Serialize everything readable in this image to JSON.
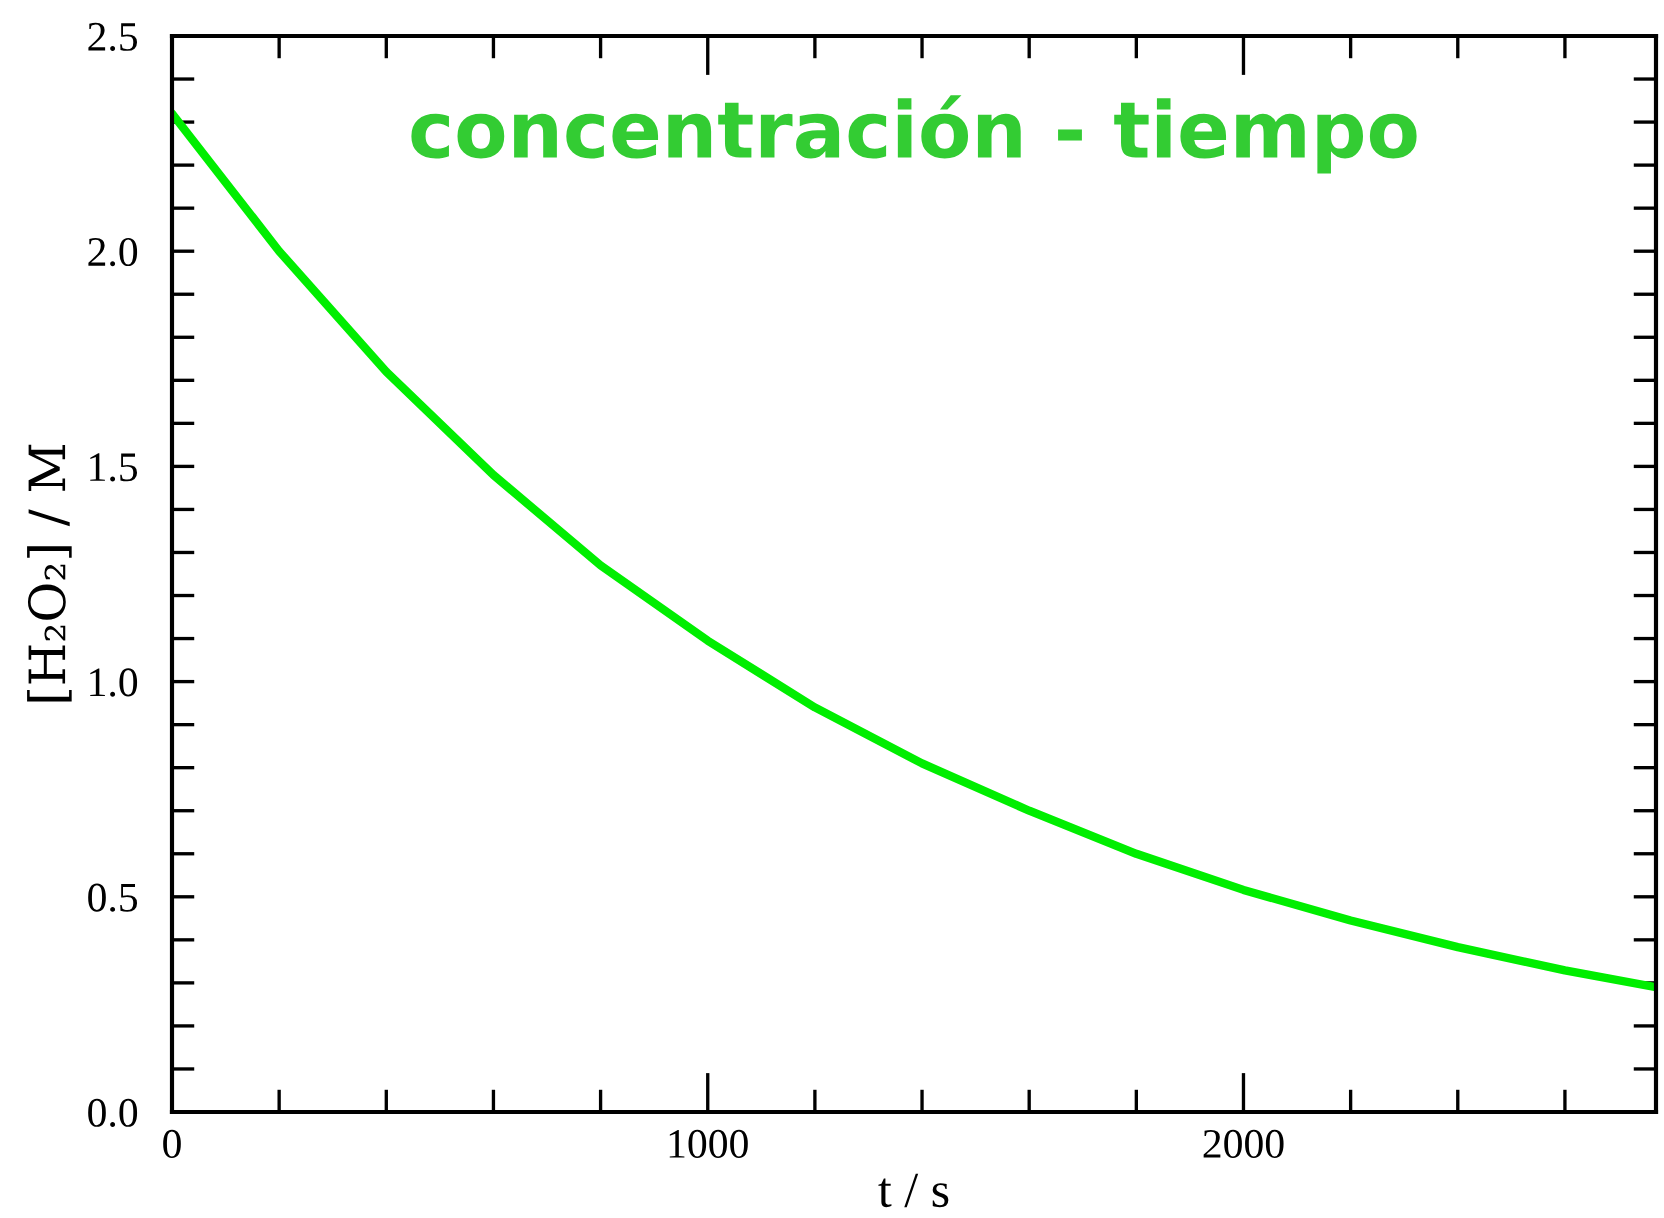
{
  "chart_data": {
    "type": "line",
    "title": "concentración - tiempo",
    "xlabel": "t / s",
    "ylabel": "[H₂O₂] / M",
    "x": [
      0,
      200,
      400,
      600,
      800,
      1000,
      1200,
      1400,
      1600,
      1800,
      2000,
      2200,
      2400,
      2600,
      2770
    ],
    "series": [
      {
        "color": "#00ee00",
        "values": [
          2.32,
          2.0,
          1.72,
          1.48,
          1.27,
          1.095,
          0.94,
          0.81,
          0.7,
          0.6,
          0.516,
          0.445,
          0.383,
          0.329,
          0.29
        ]
      }
    ],
    "xlim": [
      0,
      2770
    ],
    "ylim": [
      0,
      2.5
    ],
    "xticks": [
      0,
      {
        "value": 200,
        "label": null
      },
      {
        "value": 400,
        "label": null
      },
      {
        "value": 600,
        "label": null
      },
      {
        "value": 800,
        "label": null
      },
      1000,
      {
        "value": 1200,
        "label": null
      },
      {
        "value": 1400,
        "label": null
      },
      {
        "value": 1600,
        "label": null
      },
      {
        "value": 1800,
        "label": null
      },
      2000,
      {
        "value": 2200,
        "label": null
      },
      {
        "value": 2400,
        "label": null
      },
      {
        "value": 2600,
        "label": null
      }
    ],
    "yticks": [
      {
        "value": 0,
        "label": "0.0"
      },
      {
        "value": 0.1,
        "label": null
      },
      {
        "value": 0.2,
        "label": null
      },
      {
        "value": 0.3,
        "label": null
      },
      {
        "value": 0.4,
        "label": null
      },
      {
        "value": 0.5,
        "label": "0.5"
      },
      {
        "value": 0.6,
        "label": null
      },
      {
        "value": 0.7,
        "label": null
      },
      {
        "value": 0.8,
        "label": null
      },
      {
        "value": 0.9,
        "label": null
      },
      {
        "value": 1.0,
        "label": "1.0"
      },
      {
        "value": 1.1,
        "label": null
      },
      {
        "value": 1.2,
        "label": null
      },
      {
        "value": 1.3,
        "label": null
      },
      {
        "value": 1.4,
        "label": null
      },
      {
        "value": 1.5,
        "label": "1.5"
      },
      {
        "value": 1.6,
        "label": null
      },
      {
        "value": 1.7,
        "label": null
      },
      {
        "value": 1.8,
        "label": null
      },
      {
        "value": 1.9,
        "label": null
      },
      {
        "value": 2.0,
        "label": "2.0"
      },
      {
        "value": 2.1,
        "label": null
      },
      {
        "value": 2.2,
        "label": null
      },
      {
        "value": 2.3,
        "label": null
      },
      {
        "value": 2.4,
        "label": null
      },
      {
        "value": 2.5,
        "label": "2.5"
      }
    ],
    "grid": false,
    "legend": false
  }
}
